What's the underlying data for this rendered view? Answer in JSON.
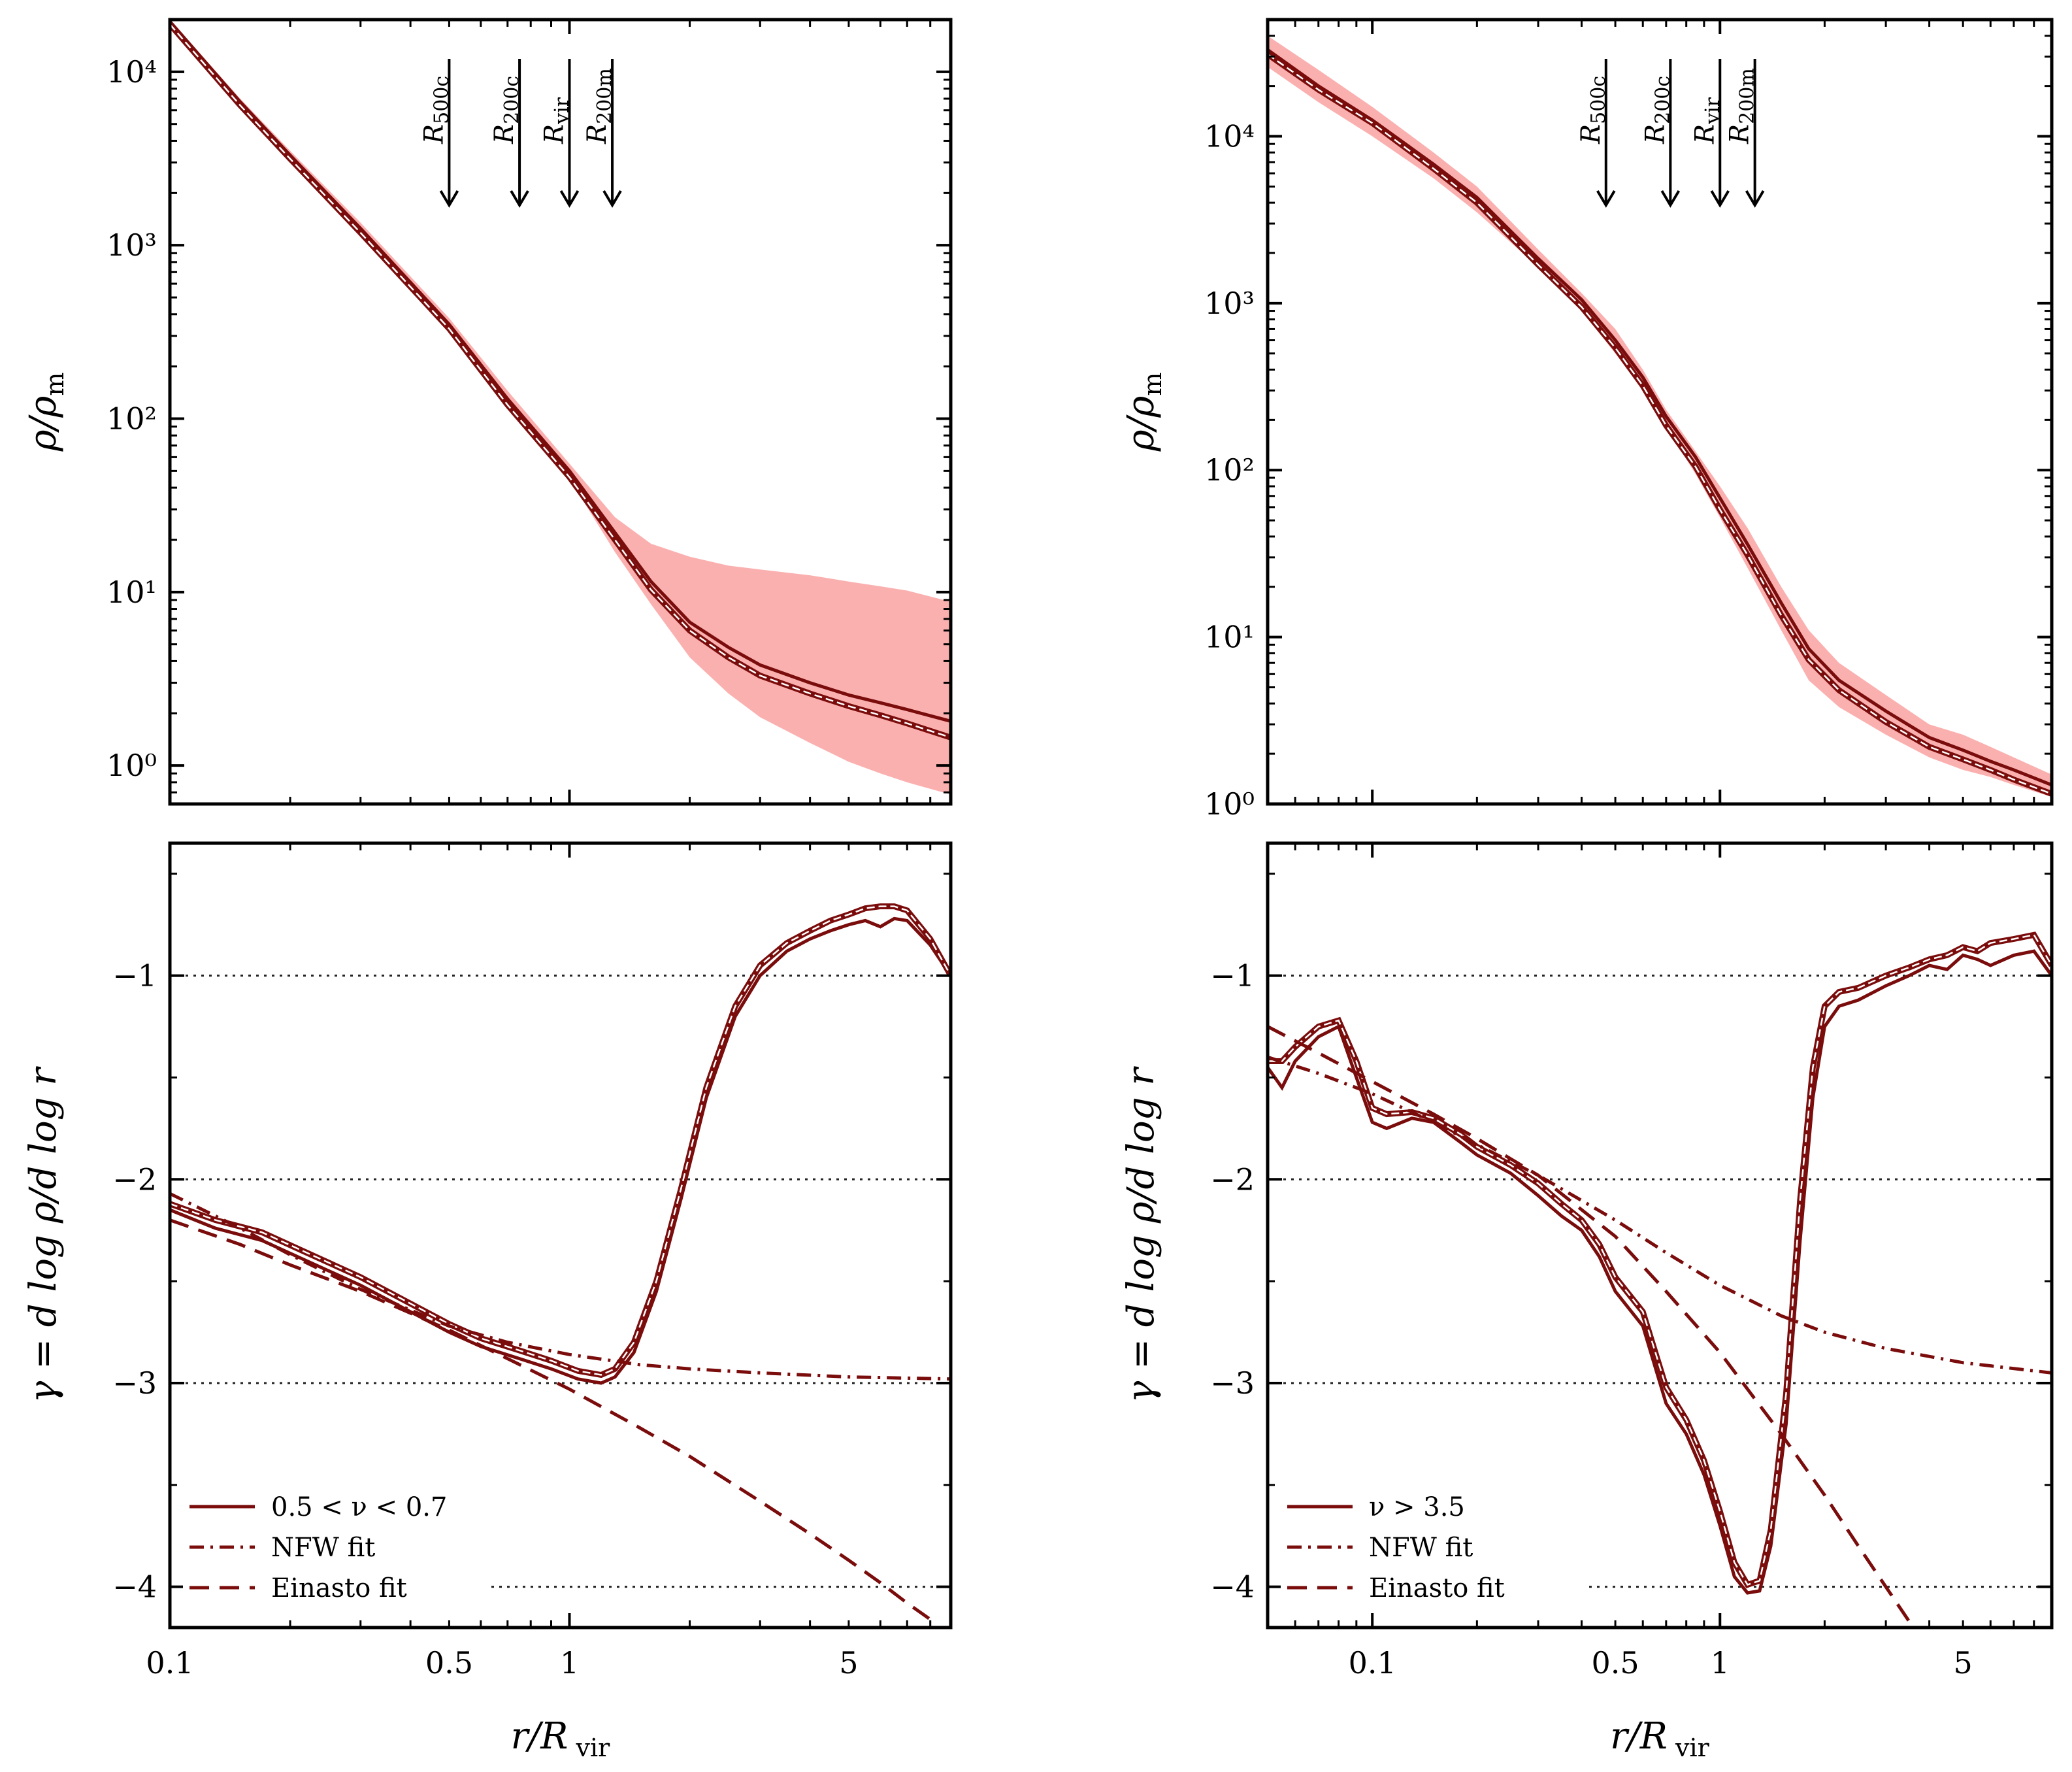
{
  "chart_data": [
    {
      "type": "line",
      "panel": "top-left",
      "ylabel": "ρ/ρ_m",
      "yscale": "log",
      "xscale": "log",
      "xlim": [
        0.1,
        9
      ],
      "ylim": [
        0.6,
        20000
      ],
      "yticks": [
        {
          "value": 1,
          "label": "10⁰"
        },
        {
          "value": 10,
          "label": "10¹"
        },
        {
          "value": 100,
          "label": "10²"
        },
        {
          "value": 1000,
          "label": "10³"
        },
        {
          "value": 10000,
          "label": "10⁴"
        }
      ],
      "markers": [
        {
          "label": "R_500c",
          "x": 0.5
        },
        {
          "label": "R_200c",
          "x": 0.75
        },
        {
          "label": "R_vir",
          "x": 1.0
        },
        {
          "label": "R_200m",
          "x": 1.28
        }
      ],
      "band": {
        "x": [
          0.1,
          0.15,
          0.2,
          0.3,
          0.5,
          0.7,
          1.0,
          1.3,
          1.6,
          2.0,
          2.5,
          3.0,
          4.0,
          5.0,
          6.0,
          7.0,
          9.0
        ],
        "upper": [
          20000,
          7000,
          3500,
          1350,
          380,
          145,
          55,
          27,
          19,
          16,
          14.2,
          13.5,
          12.5,
          11.5,
          10.8,
          10.2,
          8.8
        ],
        "lower": [
          18000,
          6200,
          3000,
          1150,
          320,
          120,
          45,
          17,
          8.5,
          4.2,
          2.6,
          1.9,
          1.35,
          1.05,
          0.9,
          0.8,
          0.68
        ]
      },
      "series": [
        {
          "name": "median",
          "style": "solid",
          "x": [
            0.1,
            0.15,
            0.2,
            0.3,
            0.5,
            0.7,
            1.0,
            1.3,
            1.6,
            2.0,
            2.5,
            3.0,
            4.0,
            5.0,
            6.0,
            7.0,
            9.0
          ],
          "values": [
            19500,
            6700,
            3300,
            1250,
            350,
            130,
            50,
            22,
            11.5,
            6.7,
            4.8,
            3.8,
            3.0,
            2.55,
            2.3,
            2.1,
            1.8
          ]
        },
        {
          "name": "mean",
          "style": "double",
          "x": [
            0.1,
            0.15,
            0.2,
            0.3,
            0.5,
            0.7,
            1.0,
            1.3,
            1.6,
            2.0,
            2.5,
            3.0,
            4.0,
            5.0,
            6.0,
            7.0,
            9.0
          ],
          "values": [
            18800,
            6400,
            3150,
            1180,
            330,
            120,
            46,
            20,
            10.3,
            6.0,
            4.2,
            3.3,
            2.6,
            2.2,
            1.95,
            1.75,
            1.45
          ]
        }
      ]
    },
    {
      "type": "line",
      "panel": "top-right",
      "ylabel": "ρ/ρ_m",
      "yscale": "log",
      "xscale": "log",
      "xlim": [
        0.05,
        9
      ],
      "ylim": [
        1,
        50000
      ],
      "yticks": [
        {
          "value": 1,
          "label": "10⁰"
        },
        {
          "value": 10,
          "label": "10¹"
        },
        {
          "value": 100,
          "label": "10²"
        },
        {
          "value": 1000,
          "label": "10³"
        },
        {
          "value": 10000,
          "label": "10⁴"
        }
      ],
      "markers": [
        {
          "label": "R_500c",
          "x": 0.47
        },
        {
          "label": "R_200c",
          "x": 0.72
        },
        {
          "label": "R_vir",
          "x": 1.0
        },
        {
          "label": "R_200m",
          "x": 1.26
        }
      ],
      "band": {
        "x": [
          0.05,
          0.07,
          0.1,
          0.15,
          0.2,
          0.3,
          0.4,
          0.5,
          0.6,
          0.7,
          0.85,
          1.0,
          1.2,
          1.5,
          1.8,
          2.2,
          3.0,
          4.0,
          5.0,
          6.0,
          7.0,
          9.0
        ],
        "upper": [
          40000,
          25000,
          15000,
          8000,
          5000,
          2100,
          1150,
          700,
          400,
          230,
          130,
          80,
          45,
          20,
          11,
          7,
          4.5,
          3.0,
          2.6,
          2.2,
          1.9,
          1.5
        ],
        "lower": [
          26000,
          16000,
          10000,
          5600,
          3500,
          1650,
          900,
          500,
          300,
          180,
          95,
          52,
          26,
          11,
          5.5,
          3.8,
          2.6,
          1.9,
          1.6,
          1.45,
          1.3,
          1.1
        ]
      },
      "series": [
        {
          "name": "median",
          "style": "solid",
          "x": [
            0.05,
            0.07,
            0.1,
            0.15,
            0.2,
            0.3,
            0.4,
            0.5,
            0.6,
            0.7,
            0.85,
            1.0,
            1.2,
            1.5,
            1.8,
            2.2,
            3.0,
            4.0,
            5.0,
            6.0,
            7.0,
            9.0
          ],
          "values": [
            33000,
            20000,
            12500,
            6800,
            4300,
            1850,
            1050,
            600,
            360,
            210,
            120,
            68,
            36,
            16,
            8.5,
            5.5,
            3.6,
            2.5,
            2.1,
            1.8,
            1.6,
            1.3
          ]
        },
        {
          "name": "mean",
          "style": "double",
          "x": [
            0.05,
            0.07,
            0.1,
            0.15,
            0.2,
            0.3,
            0.4,
            0.5,
            0.6,
            0.7,
            0.85,
            1.0,
            1.2,
            1.5,
            1.8,
            2.2,
            3.0,
            4.0,
            5.0,
            6.0,
            7.0,
            9.0
          ],
          "values": [
            31000,
            19000,
            12000,
            6400,
            4000,
            1700,
            950,
            540,
            320,
            185,
            105,
            58,
            31,
            13.5,
            7.3,
            4.8,
            3.1,
            2.2,
            1.85,
            1.6,
            1.4,
            1.15
          ]
        }
      ]
    },
    {
      "type": "line",
      "panel": "bottom-left",
      "xlabel": "r/R_vir",
      "ylabel": "γ = d log ρ/d log r",
      "xscale": "log",
      "xlim": [
        0.1,
        9
      ],
      "ylim": [
        -4.2,
        -0.35
      ],
      "xticks": [
        {
          "value": 0.1,
          "label": "0.1"
        },
        {
          "value": 0.5,
          "label": "0.5"
        },
        {
          "value": 1,
          "label": "1"
        },
        {
          "value": 5,
          "label": "5"
        }
      ],
      "yticks": [
        {
          "value": -1,
          "label": "−1"
        },
        {
          "value": -2,
          "label": "−2"
        },
        {
          "value": -3,
          "label": "−3"
        },
        {
          "value": -4,
          "label": "−4"
        }
      ],
      "hlines": [
        -1,
        -2,
        -3,
        -4
      ],
      "legend": {
        "position": "bottom-left",
        "entries": [
          {
            "label": "0.5 < ν < 0.7",
            "style": "solid"
          },
          {
            "label": "NFW fit",
            "style": "dashdot"
          },
          {
            "label": "Einasto fit",
            "style": "dashed"
          }
        ]
      },
      "series": [
        {
          "name": "0.5 < ν < 0.7",
          "style": "solid",
          "x": [
            0.1,
            0.13,
            0.17,
            0.22,
            0.3,
            0.4,
            0.5,
            0.6,
            0.75,
            0.9,
            1.05,
            1.2,
            1.3,
            1.45,
            1.65,
            1.9,
            2.2,
            2.6,
            3.0,
            3.5,
            4.0,
            4.5,
            5.0,
            5.5,
            6.0,
            6.5,
            7.0,
            8.0,
            9.0
          ],
          "values": [
            -2.15,
            -2.24,
            -2.3,
            -2.4,
            -2.52,
            -2.65,
            -2.75,
            -2.82,
            -2.88,
            -2.93,
            -2.98,
            -3.0,
            -2.97,
            -2.85,
            -2.55,
            -2.1,
            -1.6,
            -1.2,
            -1.0,
            -0.88,
            -0.82,
            -0.78,
            -0.75,
            -0.73,
            -0.76,
            -0.72,
            -0.73,
            -0.85,
            -1.0
          ]
        },
        {
          "name": "mean",
          "style": "double",
          "x": [
            0.1,
            0.13,
            0.17,
            0.22,
            0.3,
            0.4,
            0.5,
            0.6,
            0.75,
            0.9,
            1.05,
            1.2,
            1.3,
            1.45,
            1.65,
            1.9,
            2.2,
            2.6,
            3.0,
            3.5,
            4.0,
            4.5,
            5.0,
            5.5,
            6.0,
            6.5,
            7.0,
            8.0,
            9.0
          ],
          "values": [
            -2.12,
            -2.2,
            -2.26,
            -2.36,
            -2.48,
            -2.61,
            -2.71,
            -2.78,
            -2.84,
            -2.89,
            -2.94,
            -2.96,
            -2.93,
            -2.8,
            -2.5,
            -2.05,
            -1.55,
            -1.15,
            -0.95,
            -0.84,
            -0.78,
            -0.73,
            -0.7,
            -0.67,
            -0.66,
            -0.66,
            -0.68,
            -0.82,
            -1.0
          ]
        },
        {
          "name": "NFW fit",
          "style": "dashdot",
          "x": [
            0.1,
            0.15,
            0.2,
            0.3,
            0.5,
            0.7,
            1.0,
            1.5,
            2.0,
            3.0,
            5.0,
            9.0
          ],
          "values": [
            -2.07,
            -2.24,
            -2.37,
            -2.54,
            -2.72,
            -2.8,
            -2.86,
            -2.91,
            -2.93,
            -2.95,
            -2.97,
            -2.98
          ]
        },
        {
          "name": "Einasto fit",
          "style": "dashed",
          "x": [
            0.1,
            0.15,
            0.2,
            0.3,
            0.5,
            0.7,
            1.0,
            1.5,
            2.0,
            3.0,
            4.0,
            5.0,
            6.0,
            7.0,
            8.0
          ],
          "values": [
            -2.2,
            -2.32,
            -2.42,
            -2.55,
            -2.74,
            -2.88,
            -3.03,
            -3.22,
            -3.36,
            -3.58,
            -3.74,
            -3.87,
            -3.98,
            -4.08,
            -4.16
          ]
        }
      ]
    },
    {
      "type": "line",
      "panel": "bottom-right",
      "xlabel": "r/R_vir",
      "ylabel": "γ = d log ρ/d log r",
      "xscale": "log",
      "xlim": [
        0.05,
        9
      ],
      "ylim": [
        -4.2,
        -0.35
      ],
      "xticks": [
        {
          "value": 0.1,
          "label": "0.1"
        },
        {
          "value": 0.5,
          "label": "0.5"
        },
        {
          "value": 1,
          "label": "1"
        },
        {
          "value": 5,
          "label": "5"
        }
      ],
      "yticks": [
        {
          "value": -1,
          "label": "−1"
        },
        {
          "value": -2,
          "label": "−2"
        },
        {
          "value": -3,
          "label": "−3"
        },
        {
          "value": -4,
          "label": "−4"
        }
      ],
      "hlines": [
        -1,
        -2,
        -3,
        -4
      ],
      "legend": {
        "position": "bottom-left",
        "entries": [
          {
            "label": "ν > 3.5",
            "style": "solid"
          },
          {
            "label": "NFW fit",
            "style": "dashdot"
          },
          {
            "label": "Einasto fit",
            "style": "dashed"
          }
        ]
      },
      "series": [
        {
          "name": "ν > 3.5",
          "style": "solid",
          "x": [
            0.05,
            0.055,
            0.06,
            0.07,
            0.08,
            0.09,
            0.1,
            0.11,
            0.13,
            0.15,
            0.18,
            0.2,
            0.25,
            0.3,
            0.35,
            0.4,
            0.45,
            0.5,
            0.6,
            0.7,
            0.8,
            0.9,
            1.0,
            1.1,
            1.2,
            1.3,
            1.4,
            1.55,
            1.7,
            1.85,
            2.0,
            2.2,
            2.5,
            3.0,
            3.5,
            4.0,
            4.5,
            5.0,
            5.5,
            6.0,
            7.0,
            8.0,
            9.0
          ],
          "values": [
            -1.45,
            -1.55,
            -1.42,
            -1.3,
            -1.25,
            -1.5,
            -1.72,
            -1.75,
            -1.7,
            -1.72,
            -1.82,
            -1.88,
            -1.97,
            -2.08,
            -2.18,
            -2.25,
            -2.38,
            -2.55,
            -2.72,
            -3.1,
            -3.25,
            -3.45,
            -3.7,
            -3.95,
            -4.03,
            -4.02,
            -3.8,
            -3.2,
            -2.3,
            -1.6,
            -1.25,
            -1.15,
            -1.12,
            -1.05,
            -1.0,
            -0.95,
            -0.97,
            -0.9,
            -0.92,
            -0.95,
            -0.9,
            -0.88,
            -1.0
          ]
        },
        {
          "name": "mean",
          "style": "double",
          "x": [
            0.05,
            0.055,
            0.06,
            0.07,
            0.08,
            0.09,
            0.1,
            0.11,
            0.13,
            0.15,
            0.18,
            0.2,
            0.25,
            0.3,
            0.35,
            0.4,
            0.45,
            0.5,
            0.6,
            0.7,
            0.8,
            0.9,
            1.0,
            1.1,
            1.2,
            1.3,
            1.4,
            1.55,
            1.7,
            1.85,
            2.0,
            2.2,
            2.5,
            3.0,
            3.5,
            4.0,
            4.5,
            5.0,
            5.5,
            6.0,
            7.0,
            8.0,
            9.0
          ],
          "values": [
            -1.42,
            -1.42,
            -1.35,
            -1.25,
            -1.22,
            -1.42,
            -1.65,
            -1.68,
            -1.67,
            -1.7,
            -1.78,
            -1.84,
            -1.93,
            -2.02,
            -2.12,
            -2.2,
            -2.32,
            -2.48,
            -2.65,
            -3.02,
            -3.18,
            -3.38,
            -3.63,
            -3.88,
            -3.99,
            -3.97,
            -3.72,
            -3.05,
            -2.1,
            -1.45,
            -1.15,
            -1.08,
            -1.06,
            -1.0,
            -0.96,
            -0.92,
            -0.9,
            -0.86,
            -0.88,
            -0.84,
            -0.82,
            -0.8,
            -0.95
          ]
        },
        {
          "name": "NFW fit",
          "style": "dashdot",
          "x": [
            0.05,
            0.07,
            0.1,
            0.15,
            0.2,
            0.3,
            0.5,
            0.7,
            1.0,
            1.5,
            2.0,
            3.0,
            5.0,
            9.0
          ],
          "values": [
            -1.4,
            -1.48,
            -1.58,
            -1.72,
            -1.83,
            -1.98,
            -2.2,
            -2.36,
            -2.52,
            -2.67,
            -2.75,
            -2.83,
            -2.9,
            -2.95
          ]
        },
        {
          "name": "Einasto fit",
          "style": "dashed",
          "x": [
            0.05,
            0.07,
            0.1,
            0.15,
            0.2,
            0.3,
            0.5,
            0.7,
            1.0,
            1.5,
            2.0,
            2.5,
            3.0,
            3.5,
            4.0
          ],
          "values": [
            -1.25,
            -1.38,
            -1.52,
            -1.68,
            -1.8,
            -1.98,
            -2.28,
            -2.55,
            -2.85,
            -3.25,
            -3.55,
            -3.8,
            -4.0,
            -4.17,
            -4.3
          ]
        }
      ]
    }
  ],
  "colors": {
    "line": "#7a0c0c",
    "band": "#fbb0b0",
    "axis": "#000000",
    "hline": "#222222"
  }
}
